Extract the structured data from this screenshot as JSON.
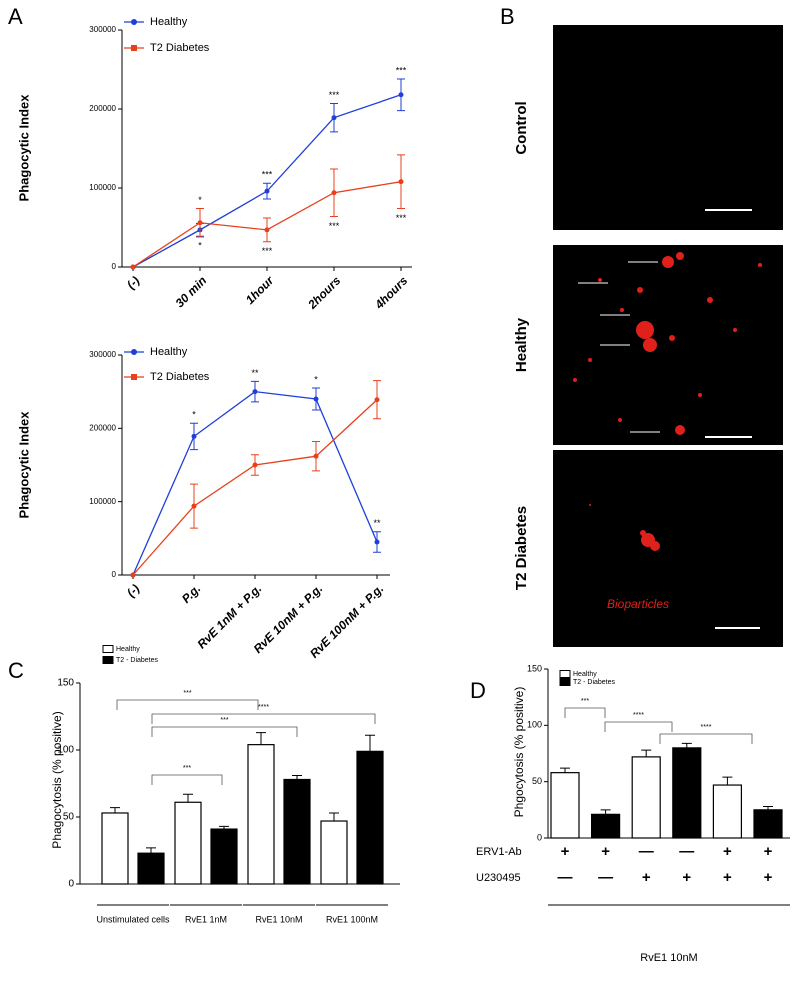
{
  "chart_data": [
    {
      "type": "line",
      "panel": "A",
      "ylabel": "Phagocytic Index",
      "categories": [
        "(-)",
        "30 min",
        "1hour",
        "2hours",
        "4hours"
      ],
      "ylim": [
        0,
        300000
      ],
      "yticks": [
        0,
        100000,
        200000,
        300000
      ],
      "series": [
        {
          "name": "Healthy",
          "color": "#1f3fd8",
          "values": [
            0,
            47000,
            96000,
            189000,
            218000
          ],
          "errors": [
            null,
            8000,
            10000,
            18000,
            20000
          ],
          "significance": [
            null,
            "*",
            "***",
            "***",
            "***"
          ]
        },
        {
          "name": "T2 Diabetes",
          "color": "#e8401c",
          "values": [
            0,
            56000,
            47000,
            94000,
            108000
          ],
          "errors": [
            null,
            18000,
            15000,
            30000,
            34000
          ],
          "significance": [
            null,
            "*",
            "***",
            "***",
            "***"
          ]
        }
      ]
    },
    {
      "type": "line",
      "ylabel": "Phagocytic Index",
      "categories": [
        "(-)",
        "P.g.",
        "RvE 1nM + P.g.",
        "RvE 10nM + P.g.",
        "RvE 100nM + P.g."
      ],
      "ylim": [
        0,
        300000
      ],
      "yticks": [
        0,
        100000,
        200000,
        300000
      ],
      "series": [
        {
          "name": "Healthy",
          "color": "#1f3fd8",
          "values": [
            0,
            189000,
            250000,
            240000,
            45000
          ],
          "errors": [
            null,
            18000,
            14000,
            15000,
            14000
          ],
          "significance": [
            null,
            "*",
            "**",
            "*",
            "**"
          ]
        },
        {
          "name": "T2 Diabetes",
          "color": "#e8401c",
          "values": [
            0,
            94000,
            150000,
            162000,
            239000
          ],
          "errors": [
            null,
            30000,
            14000,
            20000,
            26000
          ],
          "significance": [
            null,
            null,
            null,
            null,
            null
          ]
        }
      ]
    },
    {
      "type": "bar",
      "panel": "C",
      "ylabel": "Phagocytosis (% positive)",
      "categories": [
        "Unstimulated cells",
        "RvE1 1nM",
        "RvE1 10nM",
        "RvE1 100nM"
      ],
      "ylim": [
        0,
        150
      ],
      "yticks": [
        0,
        50,
        100,
        150
      ],
      "series": [
        {
          "name": "Healthy",
          "color": "#ffffff",
          "values": [
            53,
            61,
            104,
            47
          ],
          "errors": [
            4,
            6,
            9,
            6
          ]
        },
        {
          "name": "T2 - Diabetes",
          "color": "#000000",
          "values": [
            23,
            41,
            78,
            99
          ],
          "errors": [
            4,
            2,
            3,
            12
          ]
        }
      ],
      "annotations": [
        "***",
        "****",
        "***",
        "***"
      ]
    },
    {
      "type": "bar",
      "panel": "D",
      "ylabel": "Phgocytosis (% positive)",
      "ylim": [
        0,
        150
      ],
      "yticks": [
        0,
        50,
        100,
        150
      ],
      "series": [
        {
          "name": "Healthy",
          "color": "#ffffff",
          "values": [
            58,
            null,
            72,
            null,
            47,
            null
          ],
          "errors": [
            4,
            null,
            6,
            null,
            7,
            null
          ]
        },
        {
          "name": "T2 - Diabetes",
          "color": "#000000",
          "values": [
            null,
            21,
            null,
            80,
            null,
            25
          ],
          "errors": [
            null,
            4,
            null,
            4,
            null,
            3
          ]
        }
      ],
      "annotations": [
        "***",
        "****",
        "****"
      ],
      "conditions": [
        {
          "label": "ERV1-Ab",
          "cells": [
            "+",
            "+",
            "—",
            "—",
            "+",
            "+"
          ]
        },
        {
          "label": "U230495",
          "cells": [
            "—",
            "—",
            "+",
            "+",
            "+",
            "+"
          ]
        }
      ],
      "xlabel": "RvE1 10nM"
    }
  ],
  "image_panel": {
    "panel": "B",
    "rows": [
      "Control",
      "Healthy",
      "T2 Diabetes"
    ],
    "annotation": "Bioparticles"
  }
}
